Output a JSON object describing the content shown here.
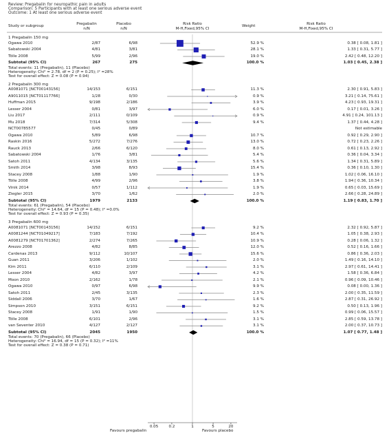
{
  "header": {
    "review": "Review:  Pregabalin for neuropathic pain in adults",
    "comparison": "Comparison:  5 Participants with at least one serious adverse event",
    "outcome": "Outcome:  1 At least one serious adverse event"
  },
  "columns": {
    "study": "Study or subgroup",
    "group1": "Pregabalin",
    "group1_sub": "n/N",
    "group2": "Placebo",
    "group2_sub": "n/N",
    "effect": "Risk Ratio",
    "effect_sub": "M-H,Fixed,95% CI",
    "weight": "Weight",
    "ci": "Risk Ratio",
    "ci_sub": "M-H,Fixed,95% CI"
  },
  "chart_data": {
    "type": "forest",
    "scale": "log",
    "xticks": [
      0.05,
      0.2,
      1,
      5,
      20
    ],
    "xtick_labels": [
      "0.05",
      "0.2",
      "1",
      "5",
      "20"
    ],
    "favours_left": "Favours pregabalin",
    "favours_right": "Favours placebo",
    "subgroups": [
      {
        "title": "1 Pregabalin 150 mg",
        "studies": [
          {
            "name": "Ogawa 2010",
            "e": "2/87",
            "c": "6/98",
            "weight": "52.9 %",
            "ci": "0.38 [ 0.08, 1.81 ]",
            "rr": 0.38,
            "lo": 0.08,
            "hi": 1.81,
            "w": 52.9
          },
          {
            "name": "Sabatowski 2004",
            "e": "4/81",
            "c": "3/81",
            "weight": "28.1 %",
            "ci": "1.33 [ 0.31, 5.77 ]",
            "rr": 1.33,
            "lo": 0.31,
            "hi": 5.77,
            "w": 28.1
          },
          {
            "name": "Tölle 2008",
            "e": "5/99",
            "c": "2/96",
            "weight": "19.0 %",
            "ci": "2.42 [ 0.48, 12.20 ]",
            "rr": 2.42,
            "lo": 0.48,
            "hi": 12.2,
            "w": 19.0
          }
        ],
        "subtotal": {
          "label": "Subtotal (95% CI)",
          "e": "267",
          "c": "275",
          "weight": "100.0 %",
          "ci": "1.03 [ 0.45, 2.38 ]",
          "rr": 1.03,
          "lo": 0.45,
          "hi": 2.38
        },
        "notes": [
          "Total events: 11 (Pregabalin), 11 (Placebo)",
          "Heterogeneity: Chi² = 2.78, df = 2 (P = 0.25); I² =28%",
          "Test for overall effect: Z = 0.08 (P = 0.94)"
        ]
      },
      {
        "title": "2 Pregabalin 300 mg",
        "studies": [
          {
            "name": "A0081071 [NCT00143156]",
            "e": "14/153",
            "c": "6/151",
            "weight": "11.3 %",
            "ci": "2.30 [ 0.91, 5.83 ]",
            "rr": 2.3,
            "lo": 0.91,
            "hi": 5.83,
            "w": 11.3
          },
          {
            "name": "A9011015 [NCT01117766]",
            "e": "1/28",
            "c": "0/30",
            "weight": "0.9 %",
            "ci": "3.21 [ 0.14, 75.61 ]",
            "rr": 3.21,
            "lo": 0.14,
            "hi": 75.61,
            "w": 0.9
          },
          {
            "name": "Huffman 2015",
            "e": "9/198",
            "c": "2/186",
            "weight": "3.9 %",
            "ci": "4.23 [ 0.93, 19.31 ]",
            "rr": 4.23,
            "lo": 0.93,
            "hi": 19.31,
            "w": 3.9
          },
          {
            "name": "Lesser 2004",
            "e": "0/81",
            "c": "3/97",
            "weight": "6.0 %",
            "ci": "0.17 [ 0.01, 3.26 ]",
            "rr": 0.17,
            "lo": 0.01,
            "hi": 3.26,
            "w": 6.0
          },
          {
            "name": "Liu 2017",
            "e": "2/111",
            "c": "0/109",
            "weight": "0.9 %",
            "ci": "4.91 [ 0.24, 101.13 ]",
            "rr": 4.91,
            "lo": 0.24,
            "hi": 101.13,
            "w": 0.9
          },
          {
            "name": "Mu 2018",
            "e": "7/314",
            "c": "5/308",
            "weight": "9.4 %",
            "ci": "1.37 [ 0.44, 4.28 ]",
            "rr": 1.37,
            "lo": 0.44,
            "hi": 4.28,
            "w": 9.4
          },
          {
            "name": "NCT00785577",
            "e": "0/45",
            "c": "0/89",
            "weight": "",
            "ci": "Not estimable",
            "rr": null,
            "lo": null,
            "hi": null,
            "w": 0
          },
          {
            "name": "Ogawa 2010",
            "e": "5/89",
            "c": "6/98",
            "weight": "10.7 %",
            "ci": "0.92 [ 0.29, 2.90 ]",
            "rr": 0.92,
            "lo": 0.29,
            "hi": 2.9,
            "w": 10.7
          },
          {
            "name": "Raskin 2016",
            "e": "5/272",
            "c": "7/276",
            "weight": "13.0 %",
            "ci": "0.72 [ 0.23, 2.26 ]",
            "rr": 0.72,
            "lo": 0.23,
            "hi": 2.26,
            "w": 13.0
          },
          {
            "name": "Rauck 2013",
            "e": "2/66",
            "c": "6/120",
            "weight": "8.0 %",
            "ci": "0.61 [ 0.13, 2.92 ]",
            "rr": 0.61,
            "lo": 0.13,
            "hi": 2.92,
            "w": 8.0
          },
          {
            "name": "Sabatowski 2004",
            "e": "1/76",
            "c": "3/81",
            "weight": "5.4 %",
            "ci": "0.36 [ 0.04, 3.34 ]",
            "rr": 0.36,
            "lo": 0.04,
            "hi": 3.34,
            "w": 5.4
          },
          {
            "name": "Satoh 2011",
            "e": "4/134",
            "c": "3/135",
            "weight": "5.6 %",
            "ci": "1.34 [ 0.31, 5.89 ]",
            "rr": 1.34,
            "lo": 0.31,
            "hi": 5.89,
            "w": 5.6
          },
          {
            "name": "Smith 2014",
            "e": "3/98",
            "c": "8/93",
            "weight": "15.4 %",
            "ci": "0.36 [ 0.10, 1.30 ]",
            "rr": 0.36,
            "lo": 0.1,
            "hi": 1.3,
            "w": 15.4
          },
          {
            "name": "Stacey 2008",
            "e": "1/88",
            "c": "1/90",
            "weight": "1.9 %",
            "ci": "1.02 [ 0.06, 16.10 ]",
            "rr": 1.02,
            "lo": 0.06,
            "hi": 16.1,
            "w": 1.9
          },
          {
            "name": "Tölle 2008",
            "e": "4/99",
            "c": "2/96",
            "weight": "3.8 %",
            "ci": "1.94 [ 0.36, 10.34 ]",
            "rr": 1.94,
            "lo": 0.36,
            "hi": 10.34,
            "w": 3.8
          },
          {
            "name": "Vinik 2014",
            "e": "0/57",
            "c": "1/112",
            "weight": "1.9 %",
            "ci": "0.65 [ 0.03, 15.69 ]",
            "rr": 0.65,
            "lo": 0.03,
            "hi": 15.69,
            "w": 1.9
          },
          {
            "name": "Ziegler 2015",
            "e": "3/70",
            "c": "1/62",
            "weight": "2.0 %",
            "ci": "2.66 [ 0.28, 24.89 ]",
            "rr": 2.66,
            "lo": 0.28,
            "hi": 24.89,
            "w": 2.0
          }
        ],
        "subtotal": {
          "label": "Subtotal (95% CI)",
          "e": "1979",
          "c": "2133",
          "weight": "100.0 %",
          "ci": "1.19 [ 0.83, 1.70 ]",
          "rr": 1.19,
          "lo": 0.83,
          "hi": 1.7
        },
        "notes": [
          "Total events: 61 (Pregabalin), 54 (Placebo)",
          "Heterogeneity: Chi² = 14.64, df = 15 (P = 0.48); I² =0.0%",
          "Test for overall effect: Z = 0.93 (P = 0.35)"
        ]
      },
      {
        "title": "3 Pregabalin 600 mg",
        "studies": [
          {
            "name": "A0081071 [NCT00143156]",
            "e": "14/152",
            "c": "6/151",
            "weight": "9.2 %",
            "ci": "2.32 [ 0.92, 5.87 ]",
            "rr": 2.32,
            "lo": 0.92,
            "hi": 5.87,
            "w": 9.2
          },
          {
            "name": "A0081244 [NCT01049217]",
            "e": "7/183",
            "c": "7/192",
            "weight": "10.4 %",
            "ci": "1.05 [ 0.38, 2.93 ]",
            "rr": 1.05,
            "lo": 0.38,
            "hi": 2.93,
            "w": 10.4
          },
          {
            "name": "A0081279 [NCT01701362]",
            "e": "2/274",
            "c": "7/265",
            "weight": "10.9 %",
            "ci": "0.28 [ 0.06, 1.32 ]",
            "rr": 0.28,
            "lo": 0.06,
            "hi": 1.32,
            "w": 10.9
          },
          {
            "name": "Arezzo 2008",
            "e": "4/82",
            "c": "8/85",
            "weight": "12.0 %",
            "ci": "0.52 [ 0.16, 1.66 ]",
            "rr": 0.52,
            "lo": 0.16,
            "hi": 1.66,
            "w": 12.0
          },
          {
            "name": "Cardenas 2013",
            "e": "9/112",
            "c": "10/107",
            "weight": "15.6 %",
            "ci": "0.86 [ 0.36, 2.03 ]",
            "rr": 0.86,
            "lo": 0.36,
            "hi": 2.03,
            "w": 15.6
          },
          {
            "name": "Guan 2011",
            "e": "3/206",
            "c": "1/102",
            "weight": "2.0 %",
            "ci": "1.49 [ 0.16, 14.10 ]",
            "rr": 1.49,
            "lo": 0.16,
            "hi": 14.1,
            "w": 2.0
          },
          {
            "name": "Kim 2011",
            "e": "6/110",
            "c": "2/109",
            "weight": "3.1 %",
            "ci": "2.97 [ 0.61, 14.41 ]",
            "rr": 2.97,
            "lo": 0.61,
            "hi": 14.41,
            "w": 3.1
          },
          {
            "name": "Lesser 2004",
            "e": "4/82",
            "c": "3/97",
            "weight": "4.2 %",
            "ci": "1.58 [ 0.36, 6.84 ]",
            "rr": 1.58,
            "lo": 0.36,
            "hi": 6.84,
            "w": 4.2
          },
          {
            "name": "Moon 2010",
            "e": "2/162",
            "c": "1/78",
            "weight": "2.1 %",
            "ci": "0.96 [ 0.09, 10.46 ]",
            "rr": 0.96,
            "lo": 0.09,
            "hi": 10.46,
            "w": 2.1
          },
          {
            "name": "Ogawa 2010",
            "e": "0/97",
            "c": "6/98",
            "weight": "9.9 %",
            "ci": "0.08 [ 0.00, 1.36 ]",
            "rr": 0.08,
            "lo": 0.004,
            "hi": 1.36,
            "w": 9.9
          },
          {
            "name": "Satoh 2011",
            "e": "2/45",
            "c": "3/135",
            "weight": "2.3 %",
            "ci": "2.00 [ 0.35, 11.59 ]",
            "rr": 2.0,
            "lo": 0.35,
            "hi": 11.59,
            "w": 2.3
          },
          {
            "name": "Siddall 2006",
            "e": "3/70",
            "c": "1/67",
            "weight": "1.6 %",
            "ci": "2.87 [ 0.31, 26.92 ]",
            "rr": 2.87,
            "lo": 0.31,
            "hi": 26.92,
            "w": 1.6
          },
          {
            "name": "Simpson 2010",
            "e": "3/151",
            "c": "6/151",
            "weight": "9.2 %",
            "ci": "0.50 [ 0.13, 1.96 ]",
            "rr": 0.5,
            "lo": 0.13,
            "hi": 1.96,
            "w": 9.2
          },
          {
            "name": "Stacey 2008",
            "e": "1/91",
            "c": "1/90",
            "weight": "1.5 %",
            "ci": "0.99 [ 0.06, 15.57 ]",
            "rr": 0.99,
            "lo": 0.06,
            "hi": 15.57,
            "w": 1.5
          },
          {
            "name": "Tölle 2008",
            "e": "6/101",
            "c": "2/96",
            "weight": "3.1 %",
            "ci": "2.85 [ 0.59, 13.78 ]",
            "rr": 2.85,
            "lo": 0.59,
            "hi": 13.78,
            "w": 3.1
          },
          {
            "name": "van Seventer 2010",
            "e": "4/127",
            "c": "2/127",
            "weight": "3.1 %",
            "ci": "2.00 [ 0.37, 10.73 ]",
            "rr": 2.0,
            "lo": 0.37,
            "hi": 10.73,
            "w": 3.1
          }
        ],
        "subtotal": {
          "label": "Subtotal (95% CI)",
          "e": "2045",
          "c": "1950",
          "weight": "100.0 %",
          "ci": "1.07 [ 0.77, 1.48 ]",
          "rr": 1.07,
          "lo": 0.77,
          "hi": 1.48
        },
        "notes": [
          "Total events: 70 (Pregabalin), 66 (Placebo)",
          "Heterogeneity: Chi² = 16.94, df = 15 (P = 0.32); I² =11%",
          "Test for overall effect: Z = 0.38 (P = 0.71)"
        ]
      }
    ]
  },
  "colors": {
    "marker": "#1f1fb4",
    "line": "#000000",
    "ci_line": "#888888",
    "axis": "#bbbbbb"
  }
}
